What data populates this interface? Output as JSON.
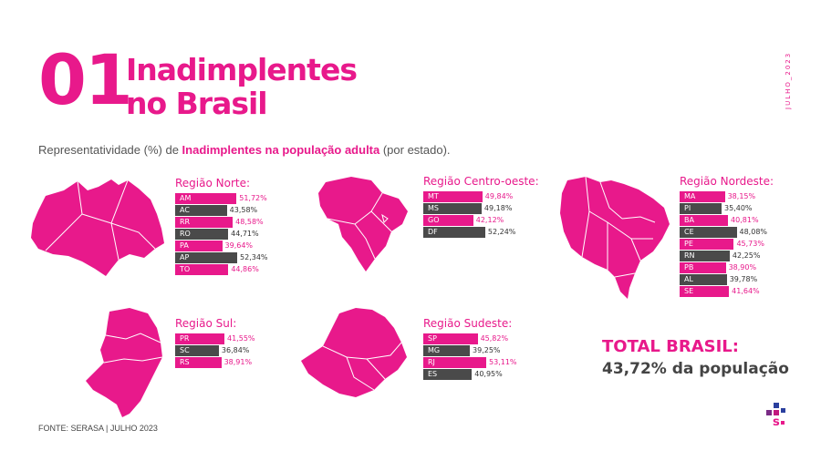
{
  "header": {
    "number": "01",
    "title_line1": "Inadimplentes",
    "title_line2": "no Brasil",
    "vertical_date": "JULHO_2023"
  },
  "subtitle": {
    "pre": "Representatividade (%) de ",
    "highlight": "Inadimplentes na população adulta",
    "post": " (por estado)."
  },
  "colors": {
    "accent": "#e8198b",
    "dark": "#4a4a4a"
  },
  "chart_data": [
    {
      "type": "bar",
      "title": "Região Norte:",
      "categories": [
        "AM",
        "AC",
        "RR",
        "RO",
        "PA",
        "AP",
        "TO"
      ],
      "values": [
        51.72,
        43.58,
        48.58,
        44.71,
        39.64,
        52.34,
        44.86
      ],
      "labels": [
        "51,72%",
        "43,58%",
        "48,58%",
        "44,71%",
        "39,64%",
        "52,34%",
        "44,86%"
      ]
    },
    {
      "type": "bar",
      "title": "Região Centro-oeste:",
      "categories": [
        "MT",
        "MS",
        "GO",
        "DF"
      ],
      "values": [
        49.84,
        49.18,
        42.12,
        52.24
      ],
      "labels": [
        "49,84%",
        "49,18%",
        "42,12%",
        "52,24%"
      ]
    },
    {
      "type": "bar",
      "title": "Região Nordeste:",
      "categories": [
        "MA",
        "PI",
        "BA",
        "CE",
        "PE",
        "RN",
        "PB",
        "AL",
        "SE"
      ],
      "values": [
        38.15,
        35.4,
        40.81,
        48.08,
        45.73,
        42.25,
        38.9,
        39.78,
        41.64
      ],
      "labels": [
        "38,15%",
        "35,40%",
        "40,81%",
        "48,08%",
        "45,73%",
        "42,25%",
        "38,90%",
        "39,78%",
        "41,64%"
      ]
    },
    {
      "type": "bar",
      "title": "Região Sul:",
      "categories": [
        "PR",
        "SC",
        "RS"
      ],
      "values": [
        41.55,
        36.84,
        38.91
      ],
      "labels": [
        "41,55%",
        "36,84%",
        "38,91%"
      ]
    },
    {
      "type": "bar",
      "title": "Região Sudeste:",
      "categories": [
        "SP",
        "MG",
        "RJ",
        "ES"
      ],
      "values": [
        45.82,
        39.25,
        53.11,
        40.95
      ],
      "labels": [
        "45,82%",
        "39,25%",
        "53,11%",
        "40,95%"
      ]
    }
  ],
  "total": {
    "label": "TOTAL BRASIL:",
    "value": "43,72% da população"
  },
  "footer": "FONTE: SERASA |  JULHO 2023"
}
